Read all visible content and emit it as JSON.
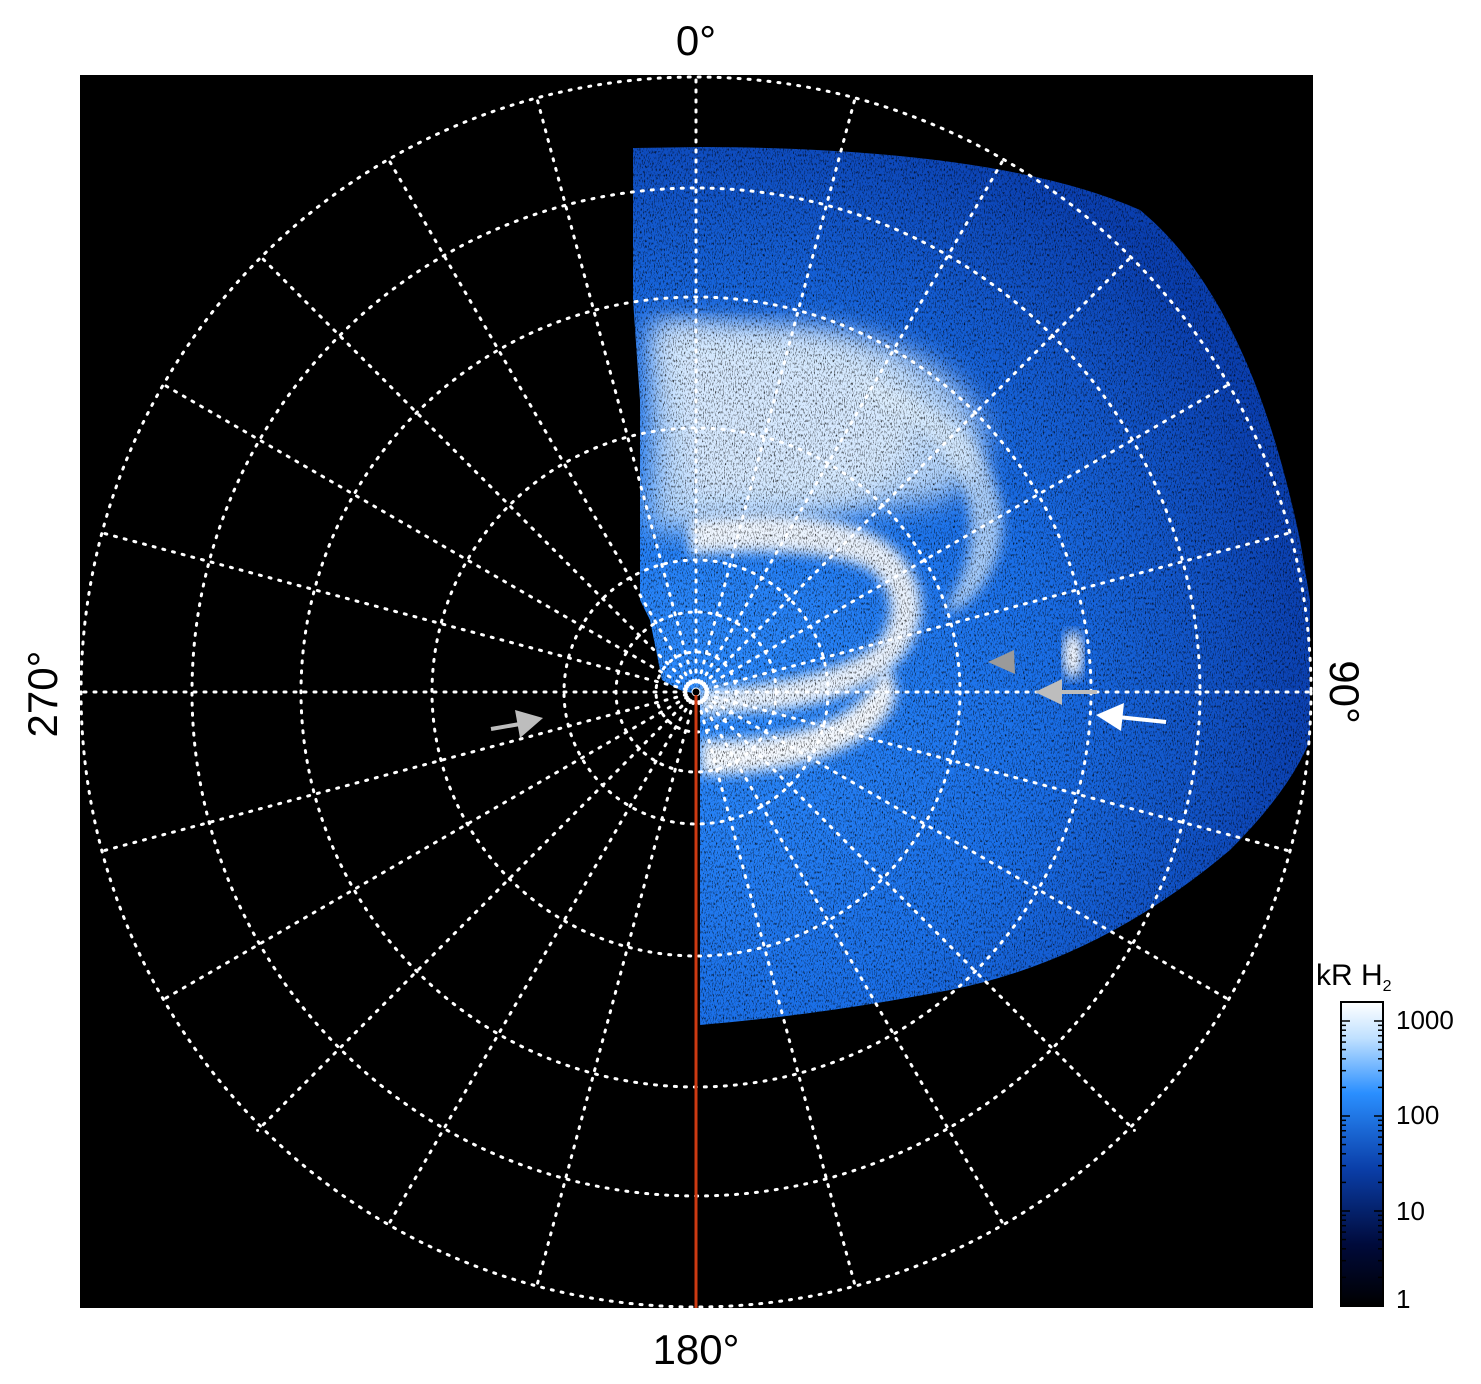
{
  "figure": {
    "direction_labels": {
      "top": "0°",
      "right": "90°",
      "bottom": "180°",
      "left": "270°"
    },
    "colorbar": {
      "title": "kR H",
      "title_subscript": "2",
      "scale": "log",
      "ticks": [
        "1000",
        "100",
        "10",
        "1"
      ],
      "colors": [
        "#ffffff",
        "#2a8fff",
        "#0a3ea8",
        "#000022",
        "#000000"
      ]
    },
    "plot_background": "#000000",
    "grid_color": "#ffffff",
    "meridian_line_color": "#cc3a12",
    "arrow_colors": {
      "white": "#ffffff",
      "gray": "#bdbdbd"
    }
  }
}
